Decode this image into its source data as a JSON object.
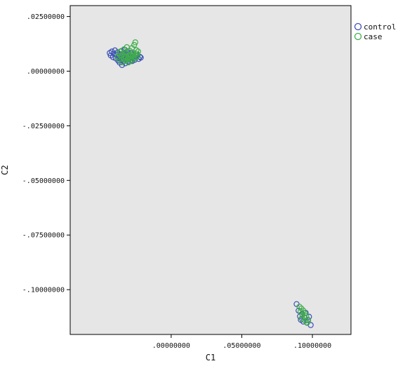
{
  "chart_data": {
    "type": "scatter",
    "title": "",
    "xlabel": "C1",
    "ylabel": "C2",
    "xlim": [
      -0.0715,
      0.1273
    ],
    "ylim": [
      -0.1205,
      0.03
    ],
    "grid": false,
    "legend_position": "top-right outside",
    "xticks": [
      {
        "value": 0.0,
        "label": ".00000000"
      },
      {
        "value": 0.05,
        "label": ".05000000"
      },
      {
        "value": 0.1,
        "label": ".10000000"
      }
    ],
    "yticks": [
      {
        "value": 0.025,
        "label": ".02500000"
      },
      {
        "value": 0.0,
        "label": ".00000000"
      },
      {
        "value": -0.025,
        "label": "-.02500000"
      },
      {
        "value": -0.05,
        "label": "-.05000000"
      },
      {
        "value": -0.075,
        "label": "-.07500000"
      },
      {
        "value": -0.1,
        "label": "-.10000000"
      }
    ],
    "series": [
      {
        "name": "control",
        "color": "#3b4fb5",
        "points": [
          [
            -0.0435,
            0.0083
          ],
          [
            -0.0428,
            0.0072
          ],
          [
            -0.042,
            0.009
          ],
          [
            -0.0412,
            0.0064
          ],
          [
            -0.0405,
            0.008
          ],
          [
            -0.0398,
            0.0095
          ],
          [
            -0.0392,
            0.0058
          ],
          [
            -0.0386,
            0.0074
          ],
          [
            -0.038,
            0.0086
          ],
          [
            -0.0375,
            0.0048
          ],
          [
            -0.037,
            0.0066
          ],
          [
            -0.0365,
            0.0039
          ],
          [
            -0.036,
            0.0078
          ],
          [
            -0.0356,
            0.0055
          ],
          [
            -0.0352,
            0.0092
          ],
          [
            -0.0348,
            0.0028
          ],
          [
            -0.0344,
            0.007
          ],
          [
            -0.034,
            0.0047
          ],
          [
            -0.0336,
            0.0082
          ],
          [
            -0.0332,
            0.0061
          ],
          [
            -0.0328,
            0.0098
          ],
          [
            -0.0324,
            0.0036
          ],
          [
            -0.032,
            0.0074
          ],
          [
            -0.0316,
            0.0054
          ],
          [
            -0.0312,
            0.0088
          ],
          [
            -0.0308,
            0.0066
          ],
          [
            -0.0304,
            0.0044
          ],
          [
            -0.03,
            0.0079
          ],
          [
            -0.0296,
            0.0058
          ],
          [
            -0.0292,
            0.007
          ],
          [
            -0.0288,
            0.005
          ],
          [
            -0.0284,
            0.0084
          ],
          [
            -0.028,
            0.0064
          ],
          [
            -0.0276,
            0.0046
          ],
          [
            -0.0272,
            0.0076
          ],
          [
            -0.0268,
            0.0058
          ],
          [
            -0.0264,
            0.0068
          ],
          [
            -0.0258,
            0.0052
          ],
          [
            -0.025,
            0.0062
          ],
          [
            -0.024,
            0.0074
          ],
          [
            -0.023,
            0.0056
          ],
          [
            -0.0222,
            0.0066
          ],
          [
            -0.0215,
            0.0062
          ],
          [
            0.0888,
            -0.1066
          ],
          [
            0.0902,
            -0.1096
          ],
          [
            0.0912,
            -0.1122
          ],
          [
            0.0918,
            -0.1138
          ],
          [
            0.0928,
            -0.1112
          ],
          [
            0.0935,
            -0.1146
          ],
          [
            0.0944,
            -0.1128
          ],
          [
            0.0952,
            -0.1106
          ],
          [
            0.096,
            -0.115
          ],
          [
            0.0968,
            -0.1138
          ],
          [
            0.0976,
            -0.1124
          ],
          [
            0.0988,
            -0.1162
          ]
        ]
      },
      {
        "name": "case",
        "color": "#3fae49",
        "points": [
          [
            -0.038,
            0.0064
          ],
          [
            -0.0372,
            0.0082
          ],
          [
            -0.0366,
            0.0052
          ],
          [
            -0.036,
            0.009
          ],
          [
            -0.0354,
            0.007
          ],
          [
            -0.0348,
            0.004
          ],
          [
            -0.0343,
            0.0078
          ],
          [
            -0.0338,
            0.0058
          ],
          [
            -0.0334,
            0.01
          ],
          [
            -0.033,
            0.0068
          ],
          [
            -0.0326,
            0.0046
          ],
          [
            -0.0322,
            0.0086
          ],
          [
            -0.0318,
            0.0062
          ],
          [
            -0.0314,
            0.011
          ],
          [
            -0.031,
            0.0054
          ],
          [
            -0.0306,
            0.0078
          ],
          [
            -0.0302,
            0.004
          ],
          [
            -0.0298,
            0.0066
          ],
          [
            -0.0294,
            0.0094
          ],
          [
            -0.029,
            0.0058
          ],
          [
            -0.0286,
            0.0076
          ],
          [
            -0.0282,
            0.0048
          ],
          [
            -0.0278,
            0.0106
          ],
          [
            -0.0274,
            0.0068
          ],
          [
            -0.027,
            0.0086
          ],
          [
            -0.0266,
            0.0056
          ],
          [
            -0.0262,
            0.012
          ],
          [
            -0.0258,
            0.0074
          ],
          [
            -0.0254,
            0.0132
          ],
          [
            -0.025,
            0.0062
          ],
          [
            -0.0246,
            0.0096
          ],
          [
            -0.0242,
            0.008
          ],
          [
            -0.0238,
            0.007
          ],
          [
            -0.0234,
            0.009
          ],
          [
            0.0908,
            -0.1078
          ],
          [
            0.0916,
            -0.11
          ],
          [
            0.0922,
            -0.1086
          ],
          [
            0.093,
            -0.1116
          ],
          [
            0.0936,
            -0.1096
          ],
          [
            0.0942,
            -0.1126
          ],
          [
            0.095,
            -0.1142
          ],
          [
            0.0956,
            -0.112
          ],
          [
            0.0962,
            -0.1152
          ],
          [
            0.097,
            -0.114
          ],
          [
            0.0924,
            -0.1132
          ],
          [
            0.0946,
            -0.1108
          ]
        ]
      }
    ]
  }
}
